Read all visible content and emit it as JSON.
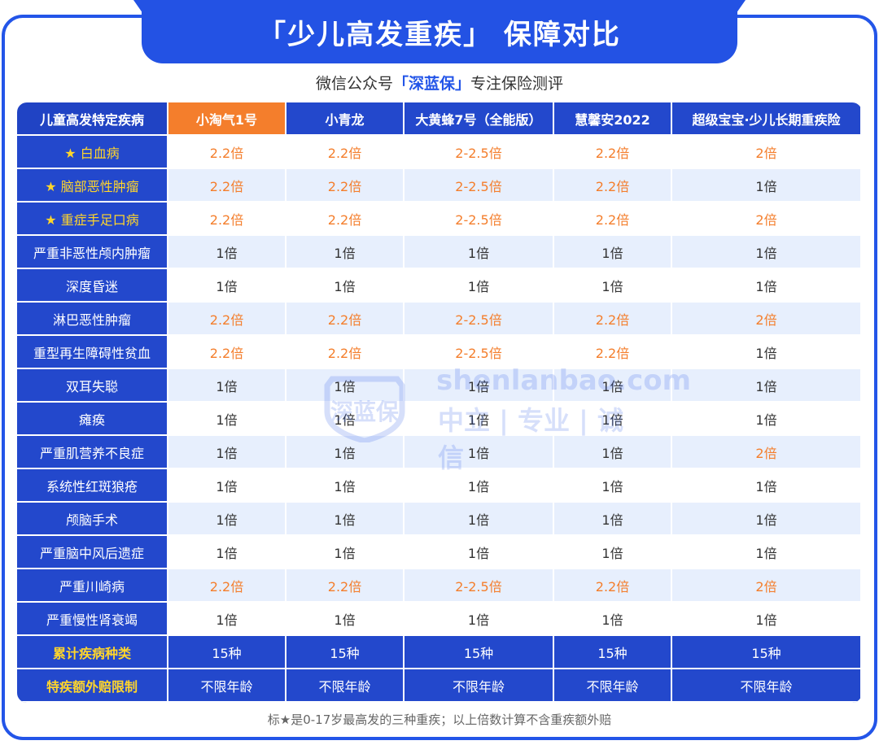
{
  "title": "「少儿高发重疾」 保障对比",
  "subtitle": {
    "prefix": "微信公众号",
    "brand": "「深蓝保」",
    "suffix": "专注保险测评"
  },
  "table": {
    "headers": [
      "儿童高发特定疾病",
      "小淘气1号",
      "小青龙",
      "大黄蜂7号（全能版）",
      "慧馨安2022",
      "超级宝宝·少儿长期重疾险"
    ],
    "rows": [
      {
        "label": "★ 白血病",
        "star": true,
        "values": [
          "2.2倍",
          "2.2倍",
          "2-2.5倍",
          "2.2倍",
          "2倍"
        ]
      },
      {
        "label": "★ 脑部恶性肿瘤",
        "star": true,
        "values": [
          "2.2倍",
          "2.2倍",
          "2-2.5倍",
          "2.2倍",
          "1倍"
        ]
      },
      {
        "label": "★ 重症手足口病",
        "star": true,
        "values": [
          "2.2倍",
          "2.2倍",
          "2-2.5倍",
          "2.2倍",
          "2倍"
        ]
      },
      {
        "label": "严重非恶性颅内肿瘤",
        "star": false,
        "values": [
          "1倍",
          "1倍",
          "1倍",
          "1倍",
          "1倍"
        ]
      },
      {
        "label": "深度昏迷",
        "star": false,
        "values": [
          "1倍",
          "1倍",
          "1倍",
          "1倍",
          "1倍"
        ]
      },
      {
        "label": "淋巴恶性肿瘤",
        "star": false,
        "values": [
          "2.2倍",
          "2.2倍",
          "2-2.5倍",
          "2.2倍",
          "2倍"
        ]
      },
      {
        "label": "重型再生障碍性贫血",
        "star": false,
        "values": [
          "2.2倍",
          "2.2倍",
          "2-2.5倍",
          "2.2倍",
          "1倍"
        ]
      },
      {
        "label": "双耳失聪",
        "star": false,
        "values": [
          "1倍",
          "1倍",
          "1倍",
          "1倍",
          "1倍"
        ]
      },
      {
        "label": "瘫痪",
        "star": false,
        "values": [
          "1倍",
          "1倍",
          "1倍",
          "1倍",
          "1倍"
        ]
      },
      {
        "label": "严重肌营养不良症",
        "star": false,
        "values": [
          "1倍",
          "1倍",
          "1倍",
          "1倍",
          "2倍"
        ]
      },
      {
        "label": "系统性红斑狼疮",
        "star": false,
        "values": [
          "1倍",
          "1倍",
          "1倍",
          "1倍",
          "1倍"
        ]
      },
      {
        "label": "颅脑手术",
        "star": false,
        "values": [
          "1倍",
          "1倍",
          "1倍",
          "1倍",
          "1倍"
        ]
      },
      {
        "label": "严重脑中风后遗症",
        "star": false,
        "values": [
          "1倍",
          "1倍",
          "1倍",
          "1倍",
          "1倍"
        ]
      },
      {
        "label": "严重川崎病",
        "star": false,
        "values": [
          "2.2倍",
          "2.2倍",
          "2-2.5倍",
          "2.2倍",
          "2倍"
        ]
      },
      {
        "label": "严重慢性肾衰竭",
        "star": false,
        "values": [
          "1倍",
          "1倍",
          "1倍",
          "1倍",
          "1倍"
        ]
      }
    ],
    "footer_rows": [
      {
        "label": "累计疾病种类",
        "values": [
          "15种",
          "15种",
          "15种",
          "15种",
          "15种"
        ]
      },
      {
        "label": "特疾额外赔限制",
        "values": [
          "不限年龄",
          "不限年龄",
          "不限年龄",
          "不限年龄",
          "不限年龄"
        ]
      }
    ]
  },
  "watermark": {
    "logo_text": "深蓝保",
    "line1": "shenlanbao.com",
    "line2": "中立 | 专业 | 诚信"
  },
  "note": "标★是0-17岁最高发的三种重疾；以上倍数计算不含重疾额外赔",
  "colors": {
    "primary_blue": "#2355e8",
    "header_blue": "#2348cc",
    "highlight_orange": "#f47e2c",
    "star_yellow": "#ffd52b",
    "stripe": "#e7effd"
  }
}
